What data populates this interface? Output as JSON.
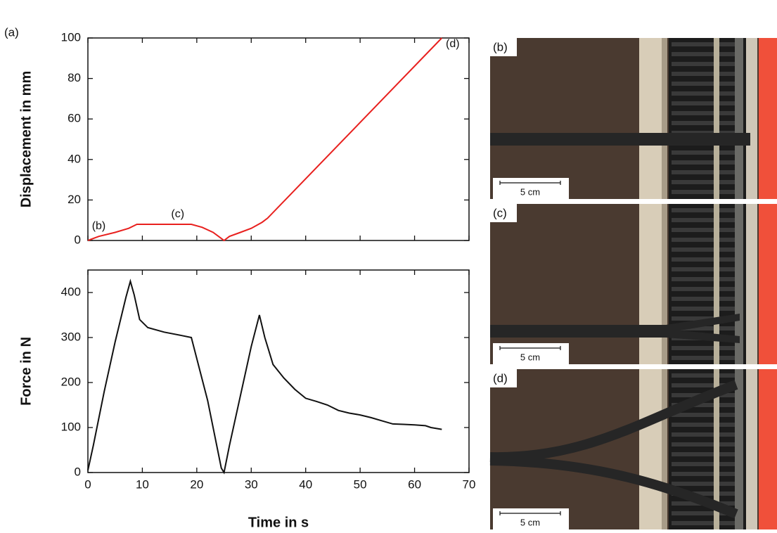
{
  "panel_label": "(a)",
  "chart_data": [
    {
      "type": "line",
      "ylabel": "Displacement in mm",
      "color": "#e8201e",
      "x": [
        0,
        2,
        5,
        7.5,
        9,
        19,
        21,
        23,
        24.5,
        25,
        26,
        28,
        30,
        32,
        33,
        65
      ],
      "values": [
        0,
        2,
        4,
        6,
        8,
        8,
        6.5,
        4,
        1,
        0,
        2,
        4,
        6,
        9,
        11,
        100
      ],
      "xlim": [
        0,
        70
      ],
      "ylim": [
        0,
        100
      ],
      "yticks": [
        0,
        20,
        40,
        60,
        80,
        100
      ],
      "annotations": [
        {
          "text": "(b)",
          "x": 2,
          "y": 7
        },
        {
          "text": "(c)",
          "x": 16.5,
          "y": 13
        },
        {
          "text": "(d)",
          "x": 67,
          "y": 97
        }
      ]
    },
    {
      "type": "line",
      "ylabel": "Force in N",
      "xlabel": "Time in s",
      "color": "#111111",
      "x": [
        0,
        1,
        3,
        5,
        7,
        7.8,
        8.5,
        9.5,
        11,
        14,
        17,
        19,
        22,
        24.5,
        25,
        26,
        28,
        30,
        31.5,
        32.5,
        34,
        36,
        38,
        40,
        42,
        44,
        46,
        48,
        50,
        52,
        54,
        56,
        58,
        60,
        62,
        63,
        65
      ],
      "values": [
        5,
        60,
        180,
        290,
        390,
        425,
        395,
        340,
        322,
        312,
        305,
        300,
        160,
        10,
        0,
        60,
        170,
        280,
        350,
        300,
        240,
        210,
        185,
        165,
        158,
        150,
        138,
        132,
        128,
        122,
        115,
        108,
        107,
        106,
        104,
        100,
        96
      ],
      "xlim": [
        0,
        70
      ],
      "ylim": [
        0,
        450
      ],
      "yticks": [
        0,
        100,
        200,
        300,
        400
      ],
      "xticks": [
        0,
        10,
        20,
        30,
        40,
        50,
        60,
        70
      ]
    }
  ],
  "photos": [
    {
      "label": "(b)",
      "scale": "5 cm"
    },
    {
      "label": "(c)",
      "scale": "5 cm"
    },
    {
      "label": "(d)",
      "scale": "5 cm"
    }
  ]
}
